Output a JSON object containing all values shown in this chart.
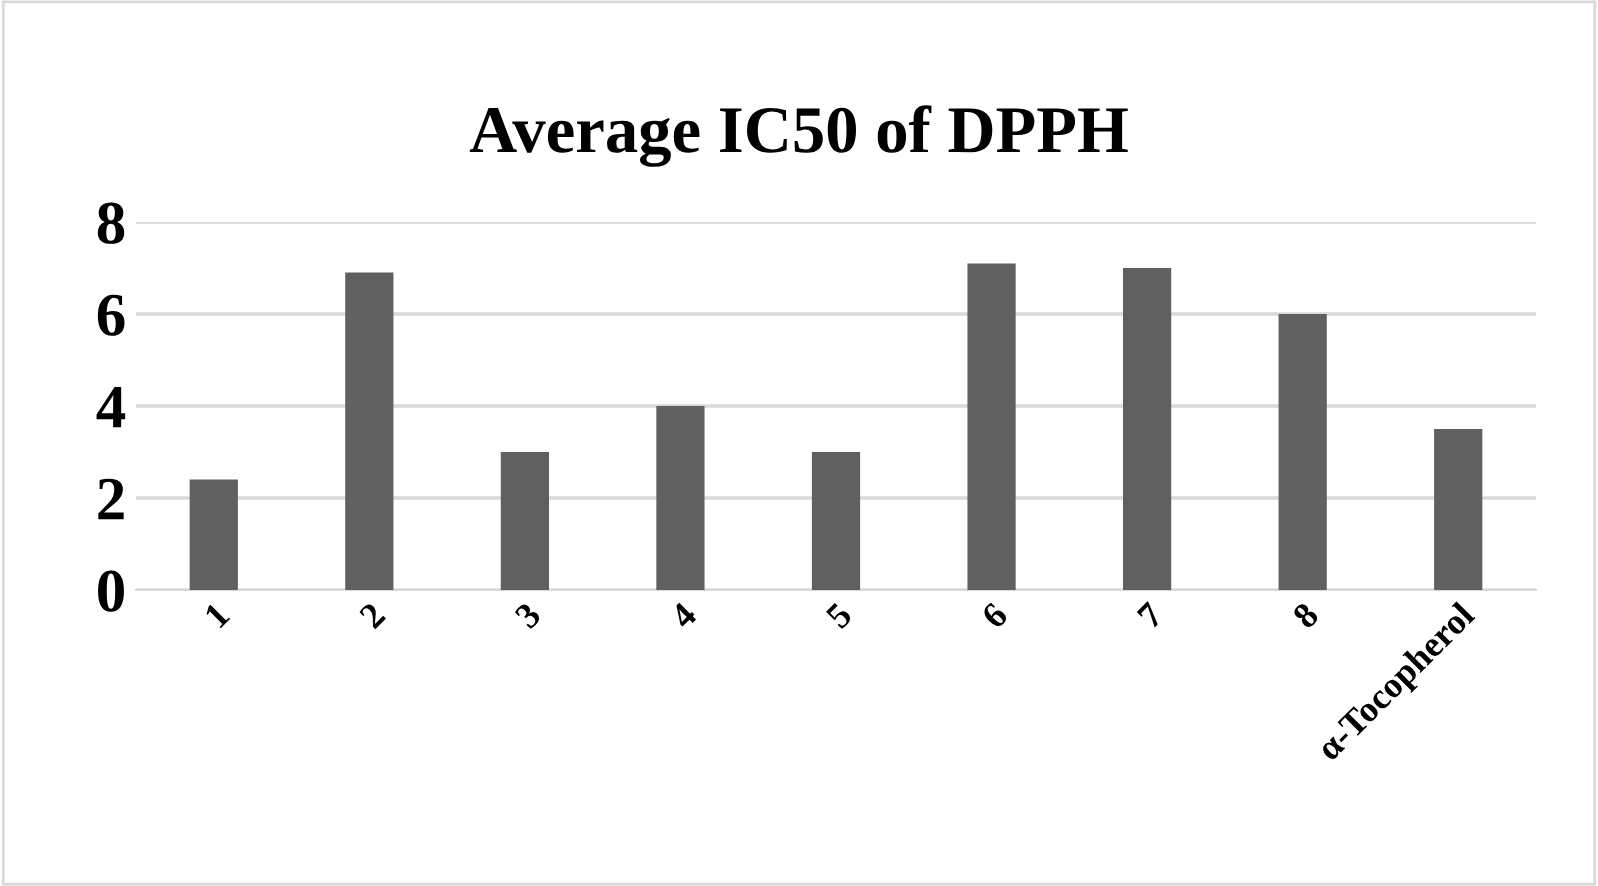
{
  "chart_data": {
    "type": "bar",
    "title": "Average IC50 of DPPH",
    "categories": [
      "1",
      "2",
      "3",
      "4",
      "5",
      "6",
      "7",
      "8",
      "α-Tocopherol"
    ],
    "values": [
      2.4,
      6.9,
      3.0,
      4.0,
      3.0,
      7.1,
      7.0,
      6.0,
      3.5
    ],
    "color": "#606060",
    "ylim": [
      0,
      8
    ],
    "yticks": [
      0,
      2,
      4,
      6,
      8
    ],
    "grid": "y"
  }
}
